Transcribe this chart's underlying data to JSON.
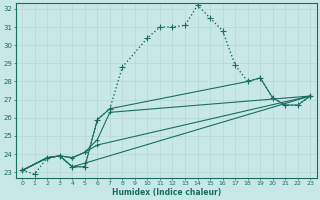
{
  "xlabel": "Humidex (Indice chaleur)",
  "bg_color": "#c8e8e8",
  "grid_color": "#d0e8e0",
  "line_color": "#1a6e5e",
  "xlim": [
    -0.5,
    23.5
  ],
  "ylim": [
    22.7,
    32.3
  ],
  "yticks": [
    23,
    24,
    25,
    26,
    27,
    28,
    29,
    30,
    31,
    32
  ],
  "xticks": [
    0,
    1,
    2,
    3,
    4,
    5,
    6,
    7,
    8,
    9,
    10,
    11,
    12,
    13,
    14,
    15,
    16,
    17,
    18,
    19,
    20,
    21,
    22,
    23
  ],
  "series": [
    {
      "x": [
        0,
        1,
        2,
        3,
        4,
        5,
        6,
        7,
        8,
        10,
        11,
        12,
        13,
        14,
        15,
        16,
        17,
        18,
        19,
        20,
        21,
        22,
        23
      ],
      "y": [
        23.1,
        22.9,
        23.8,
        23.9,
        23.3,
        23.3,
        25.9,
        26.5,
        28.8,
        30.4,
        31.0,
        31.0,
        31.1,
        32.2,
        31.5,
        30.8,
        28.9,
        28.0,
        28.2,
        27.1,
        26.7,
        26.7,
        27.2
      ],
      "linestyle": ":",
      "linewidth": 1.0,
      "marker": "+",
      "markersize": 4
    },
    {
      "x": [
        0,
        2,
        3,
        4,
        5,
        23
      ],
      "y": [
        23.1,
        23.8,
        23.9,
        23.3,
        23.5,
        27.2
      ],
      "linestyle": "-",
      "linewidth": 0.8,
      "marker": "+",
      "markersize": 3
    },
    {
      "x": [
        0,
        2,
        3,
        4,
        5,
        6,
        23
      ],
      "y": [
        23.1,
        23.8,
        23.9,
        23.8,
        24.1,
        24.5,
        27.2
      ],
      "linestyle": "-",
      "linewidth": 0.8,
      "marker": "+",
      "markersize": 3
    },
    {
      "x": [
        0,
        2,
        3,
        4,
        5,
        6,
        7,
        23
      ],
      "y": [
        23.1,
        23.8,
        23.9,
        23.8,
        24.1,
        24.8,
        26.3,
        27.2
      ],
      "linestyle": "-",
      "linewidth": 0.8,
      "marker": "+",
      "markersize": 3
    },
    {
      "x": [
        0,
        2,
        3,
        4,
        5,
        6,
        7,
        18,
        19,
        20,
        21,
        22,
        23
      ],
      "y": [
        23.1,
        23.8,
        23.9,
        23.3,
        23.3,
        25.9,
        26.5,
        28.0,
        28.2,
        27.1,
        26.7,
        26.7,
        27.2
      ],
      "linestyle": "-",
      "linewidth": 0.8,
      "marker": "+",
      "markersize": 3
    }
  ]
}
